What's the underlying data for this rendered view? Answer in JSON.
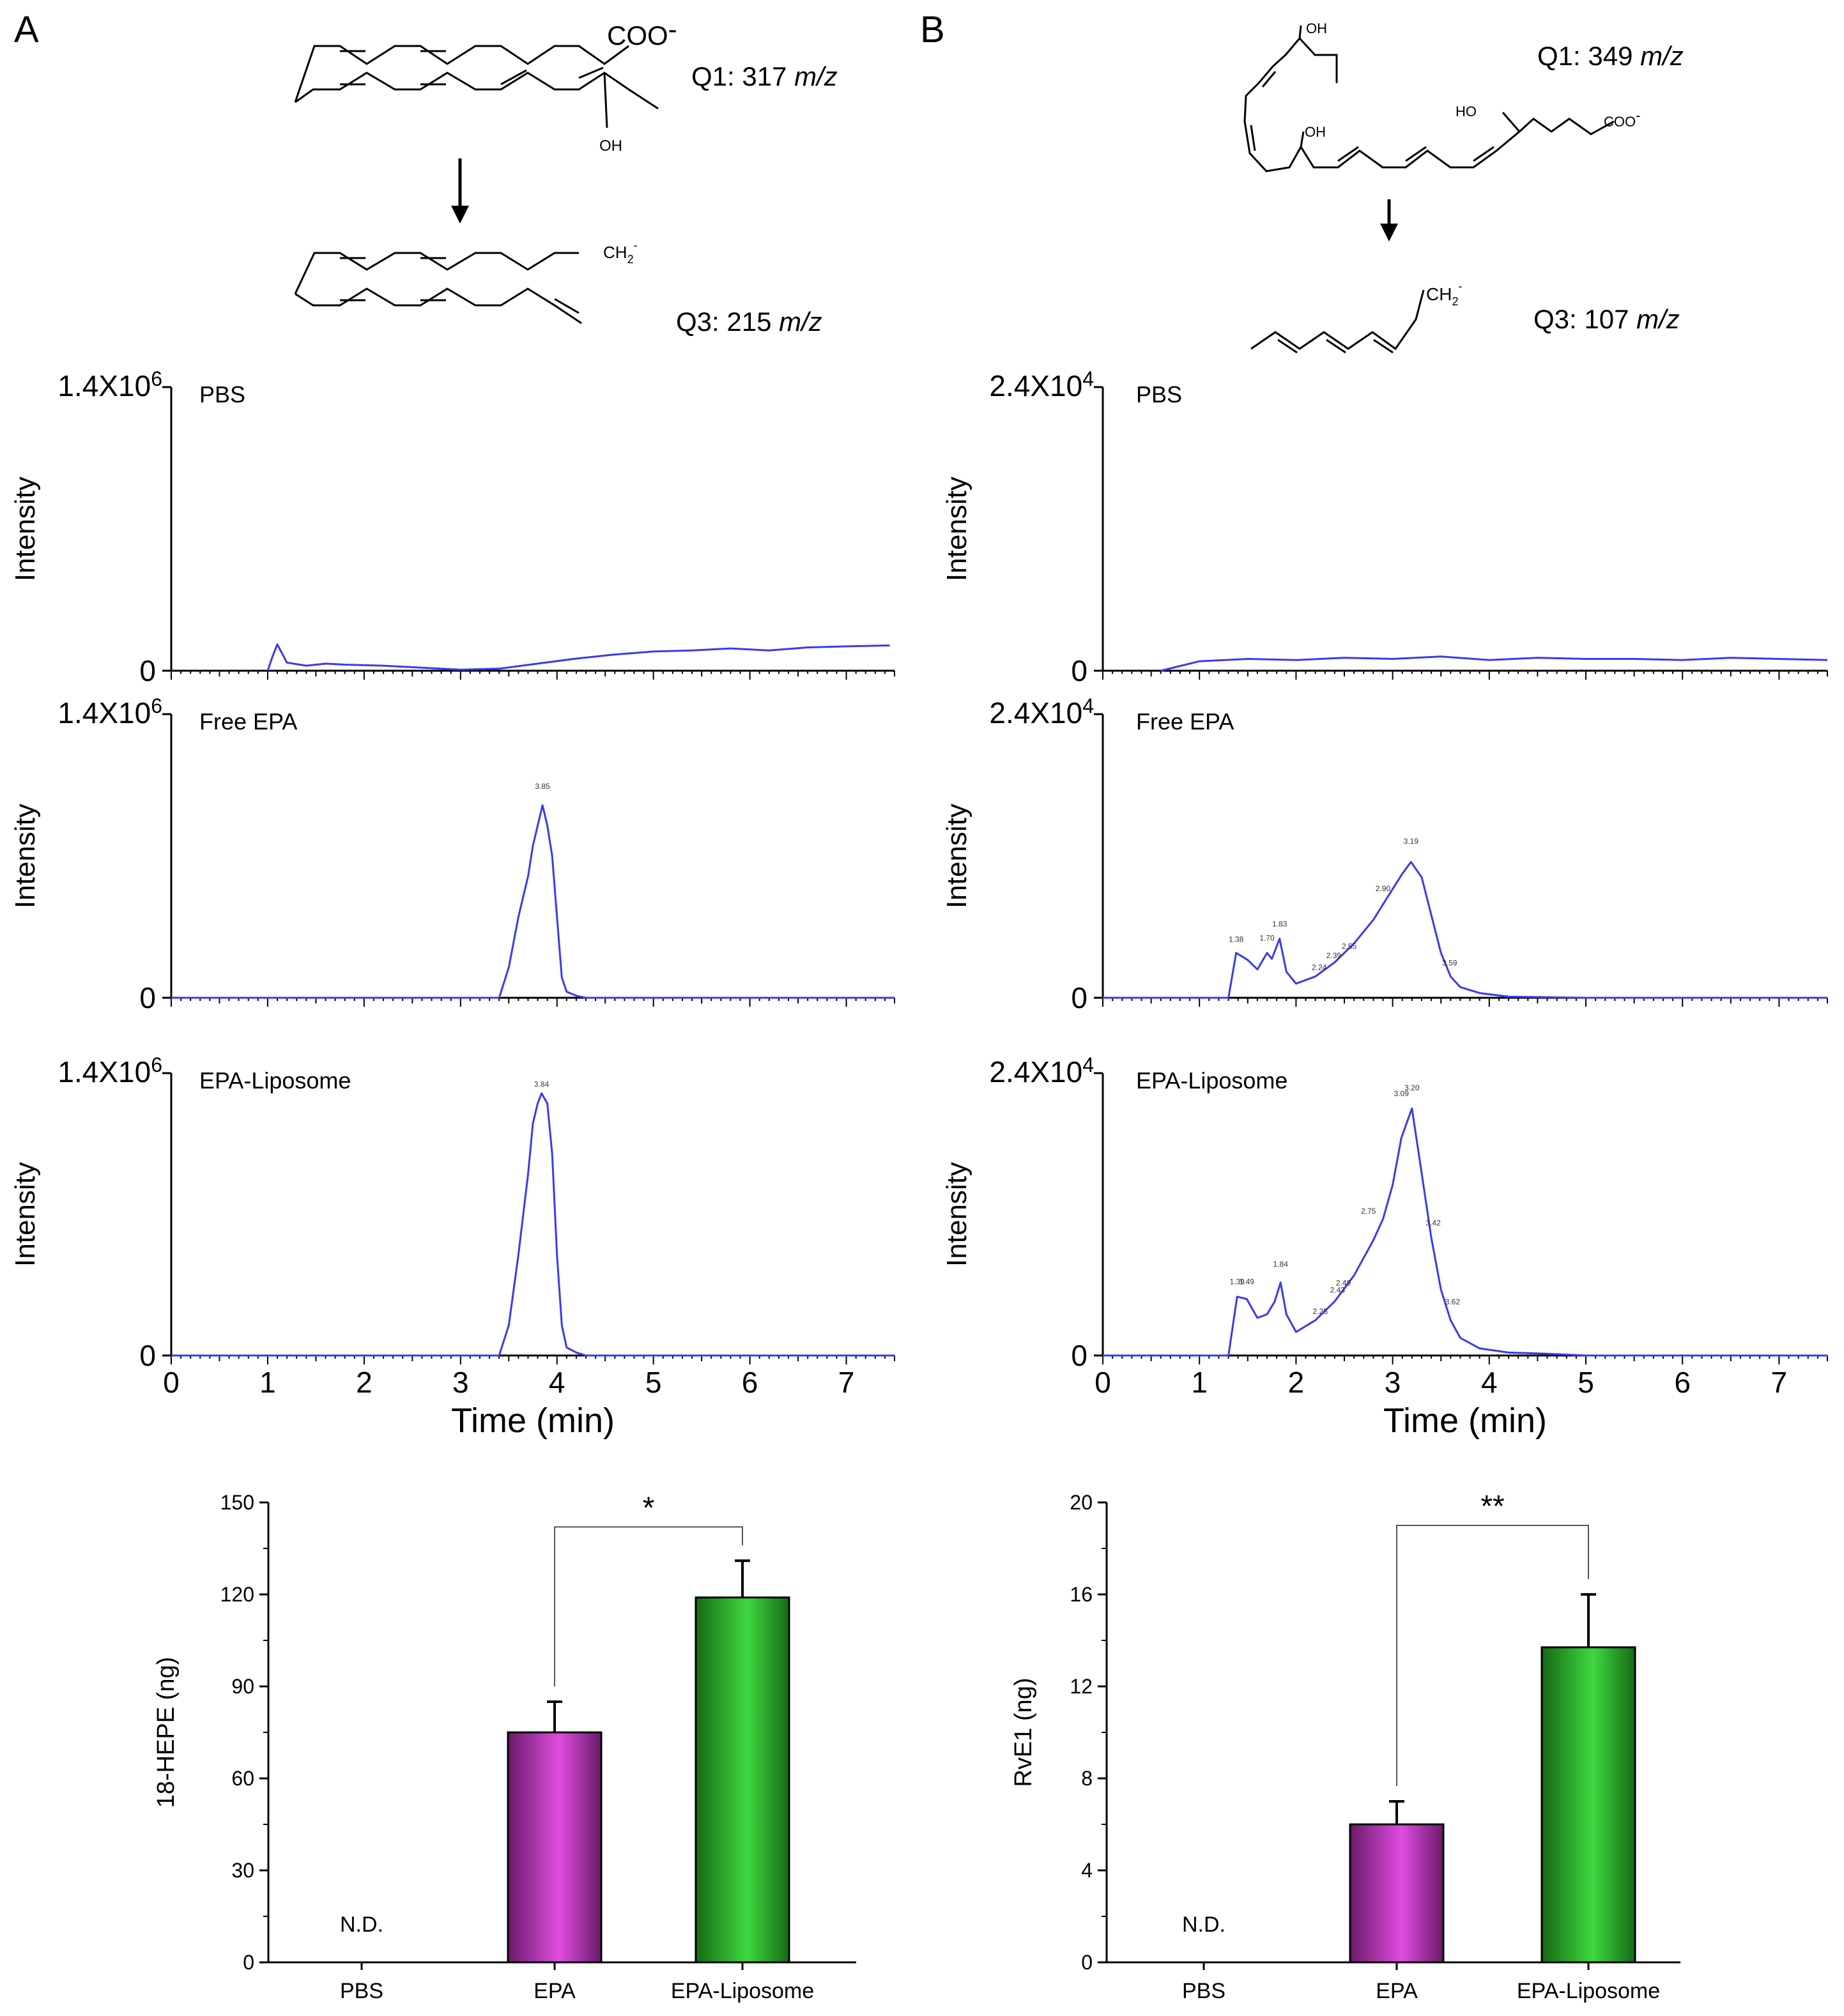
{
  "panels": {
    "A": {
      "letter": "A",
      "q1": {
        "prefix": "Q1: ",
        "value": "317",
        "unit": "m/z"
      },
      "q3": {
        "prefix": "Q3: ",
        "value": "215",
        "unit": "m/z"
      },
      "structure_labels": {
        "coo": "COO",
        "coo_charge": "-",
        "oh": "OH",
        "ch2": "CH",
        "ch2_sub": "2",
        "ch2_charge": "-"
      }
    },
    "B": {
      "letter": "B",
      "q1": {
        "prefix": "Q1: ",
        "value": "349",
        "unit": "m/z"
      },
      "q3": {
        "prefix": "Q3: ",
        "value": "107",
        "unit": "m/z"
      },
      "structure_labels": {
        "oh_top": "OH",
        "oh_mid": "OH",
        "ho": "HO",
        "coo": "COO",
        "coo_charge": "-",
        "ch2": "CH",
        "ch2_sub": "2",
        "ch2_charge": "-"
      }
    }
  },
  "colors": {
    "trace": "#3a3aee",
    "epa_bar": "#e04ce0",
    "liposome_bar": "#3fd83f",
    "axis": "#000000"
  },
  "chart_data": [
    {
      "id": "chrom_A_PBS",
      "type": "line",
      "panel": "A",
      "sample": "PBS",
      "title": "",
      "xlabel": "",
      "ylabel": "Intensity",
      "ytick_top": {
        "base": "1.4X10",
        "exp": "6"
      },
      "ytick_zero": "0",
      "xlim": [
        0,
        7.5
      ],
      "ylim": [
        0,
        1400000
      ],
      "peak_labels": [],
      "x": [
        1.0,
        1.05,
        1.1,
        1.2,
        1.4,
        1.6,
        1.8,
        2.2,
        2.6,
        3.0,
        3.4,
        3.8,
        4.2,
        4.6,
        5.0,
        5.4,
        5.8,
        6.2,
        6.6,
        7.0,
        7.45
      ],
      "y": [
        0,
        70000,
        130000,
        40000,
        25000,
        35000,
        30000,
        25000,
        15000,
        5000,
        10000,
        35000,
        60000,
        80000,
        95000,
        100000,
        110000,
        100000,
        115000,
        120000,
        125000
      ]
    },
    {
      "id": "chrom_A_FreeEPA",
      "type": "line",
      "panel": "A",
      "sample": "Free  EPA",
      "title": "",
      "xlabel": "",
      "ylabel": "Intensity",
      "ytick_top": {
        "base": "1.4X10",
        "exp": "6"
      },
      "ytick_zero": "0",
      "xlim": [
        0,
        7.5
      ],
      "ylim": [
        0,
        1400000
      ],
      "peak_labels": [
        {
          "x": 3.85,
          "y": 1000000,
          "text": "3.85"
        }
      ],
      "x": [
        0,
        3.4,
        3.5,
        3.6,
        3.7,
        3.75,
        3.8,
        3.85,
        3.9,
        3.95,
        4.0,
        4.05,
        4.1,
        4.2,
        4.3,
        7.5
      ],
      "y": [
        0,
        0,
        150000,
        400000,
        600000,
        750000,
        850000,
        950000,
        850000,
        700000,
        400000,
        100000,
        30000,
        10000,
        0,
        0
      ]
    },
    {
      "id": "chrom_A_Liposome",
      "type": "line",
      "panel": "A",
      "sample": "EPA-Liposome",
      "title": "",
      "xlabel": "Time (min)",
      "ylabel": "Intensity",
      "ytick_top": {
        "base": "1.4X10",
        "exp": "6"
      },
      "ytick_zero": "0",
      "xlim": [
        0,
        7.5
      ],
      "ylim": [
        0,
        1400000
      ],
      "xticks": [
        "0",
        "1",
        "2",
        "3",
        "4",
        "5",
        "6",
        "7"
      ],
      "peak_labels": [
        {
          "x": 3.84,
          "y": 1300000,
          "text": "3.84"
        }
      ],
      "x": [
        0,
        3.4,
        3.5,
        3.6,
        3.7,
        3.75,
        3.8,
        3.84,
        3.9,
        3.95,
        4.0,
        4.05,
        4.1,
        4.2,
        4.3,
        7.5
      ],
      "y": [
        0,
        0,
        150000,
        500000,
        900000,
        1150000,
        1250000,
        1300000,
        1250000,
        1000000,
        500000,
        150000,
        40000,
        15000,
        0,
        0
      ]
    },
    {
      "id": "chrom_B_PBS",
      "type": "line",
      "panel": "B",
      "sample": "PBS",
      "title": "",
      "xlabel": "",
      "ylabel": "Intensity",
      "ytick_top": {
        "base": "2.4X10",
        "exp": "4"
      },
      "ytick_zero": "0",
      "xlim": [
        0,
        7.5
      ],
      "ylim": [
        0,
        24000
      ],
      "peak_labels": [],
      "x": [
        0.6,
        1.0,
        1.5,
        2.0,
        2.5,
        3.0,
        3.5,
        4.0,
        4.5,
        5.0,
        5.5,
        6.0,
        6.5,
        7.0,
        7.5
      ],
      "y": [
        0,
        800,
        1000,
        900,
        1100,
        1000,
        1200,
        900,
        1100,
        1000,
        1000,
        900,
        1100,
        1000,
        900
      ]
    },
    {
      "id": "chrom_B_FreeEPA",
      "type": "line",
      "panel": "B",
      "sample": "Free  EPA",
      "title": "",
      "xlabel": "",
      "ylabel": "Intensity",
      "ytick_top": {
        "base": "2.4X10",
        "exp": "4"
      },
      "ytick_zero": "0",
      "xlim": [
        0,
        7.5
      ],
      "ylim": [
        0,
        24000
      ],
      "peak_labels": [
        {
          "x": 1.38,
          "y": 4200,
          "text": "1.38"
        },
        {
          "x": 1.7,
          "y": 4300,
          "text": "1.70"
        },
        {
          "x": 1.83,
          "y": 5500,
          "text": "1.83"
        },
        {
          "x": 2.24,
          "y": 1800,
          "text": "2.24"
        },
        {
          "x": 2.39,
          "y": 2800,
          "text": "2.39"
        },
        {
          "x": 2.55,
          "y": 3600,
          "text": "2.55"
        },
        {
          "x": 2.9,
          "y": 8500,
          "text": "2.90"
        },
        {
          "x": 3.19,
          "y": 12500,
          "text": "3.19"
        },
        {
          "x": 3.59,
          "y": 2200,
          "text": "3.59"
        }
      ],
      "x": [
        0,
        1.3,
        1.38,
        1.5,
        1.6,
        1.7,
        1.75,
        1.83,
        1.9,
        2.0,
        2.2,
        2.4,
        2.6,
        2.8,
        3.0,
        3.1,
        3.19,
        3.3,
        3.4,
        3.5,
        3.6,
        3.7,
        3.9,
        4.2,
        5.0,
        7.5
      ],
      "y": [
        0,
        0,
        3800,
        3200,
        2400,
        3800,
        3300,
        5000,
        2200,
        1200,
        1800,
        3000,
        4600,
        6600,
        9200,
        10500,
        11500,
        10200,
        7000,
        3800,
        1800,
        900,
        400,
        100,
        0,
        0
      ]
    },
    {
      "id": "chrom_B_Liposome",
      "type": "line",
      "panel": "B",
      "sample": "EPA-Liposome",
      "title": "",
      "xlabel": "Time (min)",
      "ylabel": "Intensity",
      "ytick_top": {
        "base": "2.4X10",
        "exp": "4"
      },
      "ytick_zero": "0",
      "xlim": [
        0,
        7.5
      ],
      "ylim": [
        0,
        24000
      ],
      "xticks": [
        "0",
        "1",
        "2",
        "3",
        "4",
        "5",
        "6",
        "7"
      ],
      "peak_labels": [
        {
          "x": 1.39,
          "y": 5500,
          "text": "1.39"
        },
        {
          "x": 1.49,
          "y": 5500,
          "text": "1.49"
        },
        {
          "x": 1.84,
          "y": 7000,
          "text": "1.84"
        },
        {
          "x": 2.25,
          "y": 3000,
          "text": "2.25"
        },
        {
          "x": 2.43,
          "y": 4800,
          "text": "2.43"
        },
        {
          "x": 2.49,
          "y": 5400,
          "text": "2.49"
        },
        {
          "x": 2.75,
          "y": 11500,
          "text": "2.75"
        },
        {
          "x": 3.09,
          "y": 21500,
          "text": "3.09"
        },
        {
          "x": 3.2,
          "y": 22000,
          "text": "3.20"
        },
        {
          "x": 3.42,
          "y": 10500,
          "text": "3.42"
        },
        {
          "x": 3.62,
          "y": 3800,
          "text": "3.62"
        }
      ],
      "x": [
        0,
        1.3,
        1.39,
        1.49,
        1.6,
        1.7,
        1.78,
        1.84,
        1.9,
        2.0,
        2.2,
        2.4,
        2.6,
        2.8,
        2.9,
        3.0,
        3.09,
        3.2,
        3.3,
        3.4,
        3.5,
        3.6,
        3.7,
        3.9,
        4.2,
        4.6,
        5.0,
        7.5
      ],
      "y": [
        0,
        0,
        5000,
        4800,
        3200,
        3500,
        4600,
        6200,
        3500,
        2000,
        3000,
        4600,
        6800,
        9800,
        11600,
        14500,
        18500,
        21000,
        15500,
        10000,
        5600,
        3000,
        1500,
        600,
        250,
        150,
        0,
        0
      ]
    },
    {
      "id": "bar_A",
      "type": "bar",
      "panel": "A",
      "title": "",
      "xlabel": "",
      "ylabel": "18-HEPE (ng)",
      "ylim": [
        0,
        150
      ],
      "yticks": [
        "0",
        "30",
        "60",
        "90",
        "120",
        "150"
      ],
      "categories": [
        "PBS",
        "EPA",
        "EPA-Liposome"
      ],
      "values": [
        null,
        75,
        119
      ],
      "errors": [
        null,
        10,
        12
      ],
      "annotations": [
        {
          "text": "N.D.",
          "category": "PBS"
        }
      ],
      "significance": {
        "from": "EPA",
        "to": "EPA-Liposome",
        "label": "*",
        "y": 142
      }
    },
    {
      "id": "bar_B",
      "type": "bar",
      "panel": "B",
      "title": "",
      "xlabel": "",
      "ylabel": "RvE1 (ng)",
      "ylim": [
        0,
        20
      ],
      "yticks": [
        "0",
        "4",
        "8",
        "12",
        "16",
        "20"
      ],
      "categories": [
        "PBS",
        "EPA",
        "EPA-Liposome"
      ],
      "values": [
        null,
        6,
        13.7
      ],
      "errors": [
        null,
        1,
        2.3
      ],
      "annotations": [
        {
          "text": "N.D.",
          "category": "PBS"
        }
      ],
      "significance": {
        "from": "EPA",
        "to": "EPA-Liposome",
        "label": "**",
        "y": 19
      }
    }
  ]
}
